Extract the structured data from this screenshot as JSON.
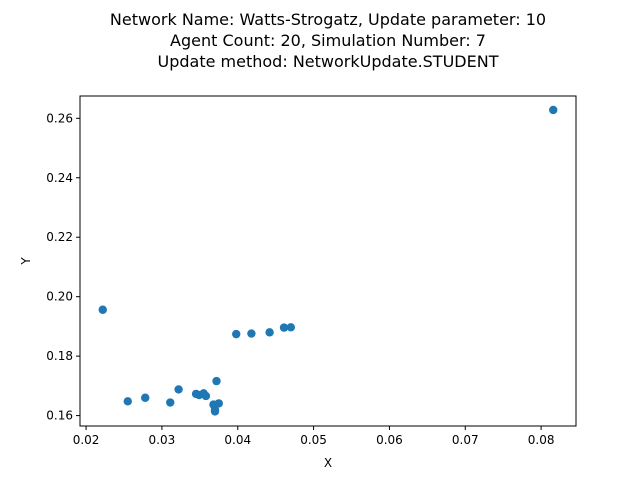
{
  "chart_data": {
    "type": "scatter",
    "title_lines": [
      "Network Name: Watts-Strogatz, Update parameter: 10",
      "Agent Count: 20, Simulation Number: 7",
      "Update method: NetworkUpdate.STUDENT"
    ],
    "xlabel": "X",
    "ylabel": "Y",
    "xlim": [
      0.0192,
      0.0846
    ],
    "ylim": [
      0.1565,
      0.2675
    ],
    "xticks": [
      0.02,
      0.03,
      0.04,
      0.05,
      0.06,
      0.07,
      0.08
    ],
    "xtick_labels": [
      "0.02",
      "0.03",
      "0.04",
      "0.05",
      "0.06",
      "0.07",
      "0.08"
    ],
    "yticks": [
      0.16,
      0.18,
      0.2,
      0.22,
      0.24,
      0.26
    ],
    "ytick_labels": [
      "0.16",
      "0.18",
      "0.20",
      "0.22",
      "0.24",
      "0.26"
    ],
    "grid": false,
    "marker_color": "#1f77b4",
    "points": [
      {
        "x": 0.0816,
        "y": 0.2628
      },
      {
        "x": 0.0222,
        "y": 0.1956
      },
      {
        "x": 0.0398,
        "y": 0.1874
      },
      {
        "x": 0.0418,
        "y": 0.1876
      },
      {
        "x": 0.0442,
        "y": 0.188
      },
      {
        "x": 0.0461,
        "y": 0.1896
      },
      {
        "x": 0.047,
        "y": 0.1897
      },
      {
        "x": 0.0255,
        "y": 0.1648
      },
      {
        "x": 0.0278,
        "y": 0.166
      },
      {
        "x": 0.0311,
        "y": 0.1644
      },
      {
        "x": 0.0322,
        "y": 0.1688
      },
      {
        "x": 0.0345,
        "y": 0.1673
      },
      {
        "x": 0.0349,
        "y": 0.1669
      },
      {
        "x": 0.0355,
        "y": 0.1675
      },
      {
        "x": 0.0358,
        "y": 0.1666
      },
      {
        "x": 0.0368,
        "y": 0.1637
      },
      {
        "x": 0.037,
        "y": 0.1619
      },
      {
        "x": 0.037,
        "y": 0.1614
      },
      {
        "x": 0.0372,
        "y": 0.1716
      },
      {
        "x": 0.0375,
        "y": 0.1641
      }
    ]
  }
}
